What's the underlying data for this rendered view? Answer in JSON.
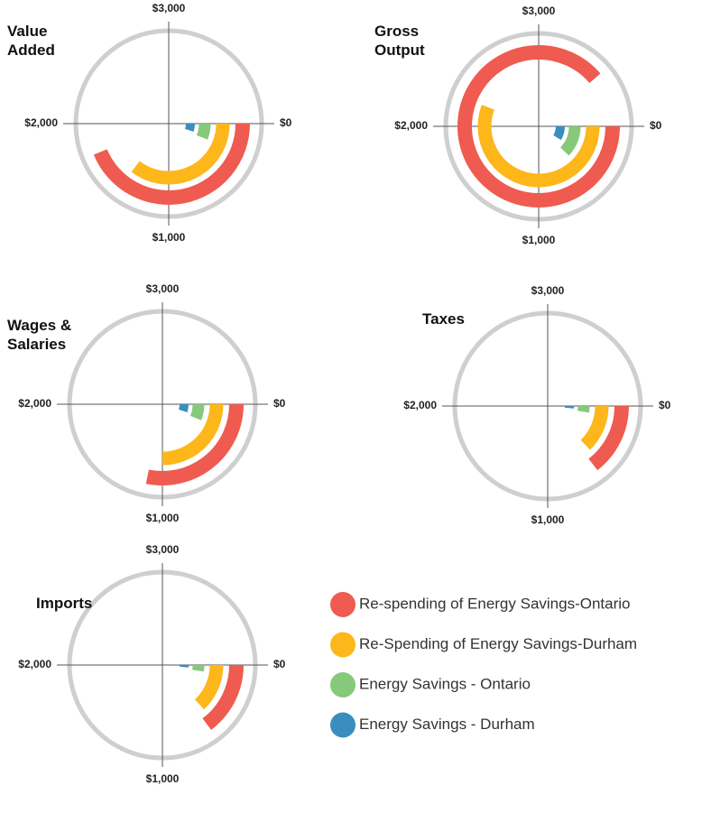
{
  "legend": {
    "series": [
      {
        "name": "Re-spending of Energy Savings-Ontario",
        "color": "#ef5b50"
      },
      {
        "name": "Re-Spending of Energy Savings-Durham",
        "color": "#fdb71a"
      },
      {
        "name": "Energy Savings - Ontario",
        "color": "#86c97a"
      },
      {
        "name": "Energy Savings - Durham",
        "color": "#3b8dbf"
      }
    ]
  },
  "chart_data": [
    {
      "type": "radial_bar",
      "title": "Value Added",
      "xlim": [
        0,
        4000
      ],
      "xticks": [
        {
          "value": 0,
          "label": "$0"
        },
        {
          "value": 1000,
          "label": "$1,000"
        },
        {
          "value": 2000,
          "label": "$2,000"
        },
        {
          "value": 3000,
          "label": "$3,000"
        }
      ],
      "values": [
        1750,
        1420,
        250,
        200
      ]
    },
    {
      "type": "radial_bar",
      "title": "Gross Output",
      "xlim": [
        0,
        4000
      ],
      "xticks": [
        {
          "value": 0,
          "label": "$0"
        },
        {
          "value": 1000,
          "label": "$1,000"
        },
        {
          "value": 2000,
          "label": "$2,000"
        },
        {
          "value": 3000,
          "label": "$3,000"
        }
      ],
      "values": [
        3550,
        2230,
        490,
        350
      ]
    },
    {
      "type": "radial_bar",
      "title": "Wages & Salaries",
      "xlim": [
        0,
        4000
      ],
      "xticks": [
        {
          "value": 0,
          "label": "$0"
        },
        {
          "value": 1000,
          "label": "$1,000"
        },
        {
          "value": 2000,
          "label": "$2,000"
        },
        {
          "value": 3000,
          "label": "$3,000"
        }
      ],
      "values": [
        1130,
        1000,
        250,
        200
      ]
    },
    {
      "type": "radial_bar",
      "title": "Taxes",
      "xlim": [
        0,
        4000
      ],
      "xticks": [
        {
          "value": 0,
          "label": "$0"
        },
        {
          "value": 1000,
          "label": "$1,000"
        },
        {
          "value": 2000,
          "label": "$2,000"
        },
        {
          "value": 3000,
          "label": "$3,000"
        }
      ],
      "values": [
        580,
        510,
        100,
        60
      ]
    },
    {
      "type": "radial_bar",
      "title": "Imports",
      "xlim": [
        0,
        4000
      ],
      "xticks": [
        {
          "value": 0,
          "label": "$0"
        },
        {
          "value": 1000,
          "label": "$1,000"
        },
        {
          "value": 2000,
          "label": "$2,000"
        },
        {
          "value": 3000,
          "label": "$3,000"
        }
      ],
      "values": [
        590,
        520,
        100,
        60
      ]
    }
  ]
}
